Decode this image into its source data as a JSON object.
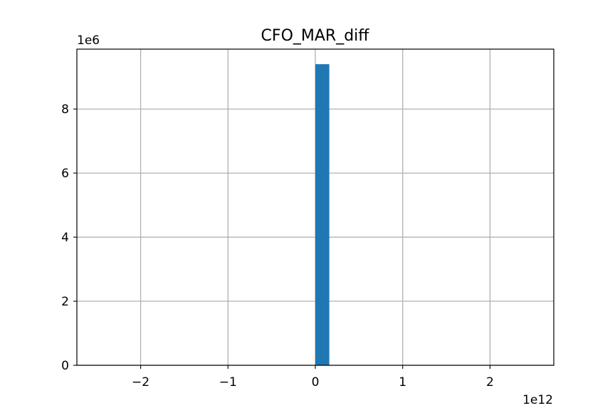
{
  "chart_data": {
    "type": "bar",
    "title": "CFO_MAR_diff",
    "xlabel": "",
    "ylabel": "",
    "x_offset_text": "1e12",
    "y_offset_text": "1e6",
    "x_scale": 1000000000000,
    "y_scale": 1000000,
    "xlim": [
      -2.73,
      2.73
    ],
    "ylim": [
      0,
      9.87
    ],
    "x_ticks": [
      -2,
      -1,
      0,
      1,
      2
    ],
    "x_tick_labels": [
      "−2",
      "−1",
      "0",
      "1",
      "2"
    ],
    "y_ticks": [
      0,
      2,
      4,
      6,
      8
    ],
    "y_tick_labels": [
      "0",
      "2",
      "4",
      "6",
      "8"
    ],
    "grid": true,
    "colors": {
      "bar": "#1f77b4",
      "grid": "#b0b0b0",
      "axes": "#000000"
    },
    "bars": [
      {
        "x0": 0.0,
        "x1": 0.16,
        "value": 9.4
      }
    ]
  }
}
